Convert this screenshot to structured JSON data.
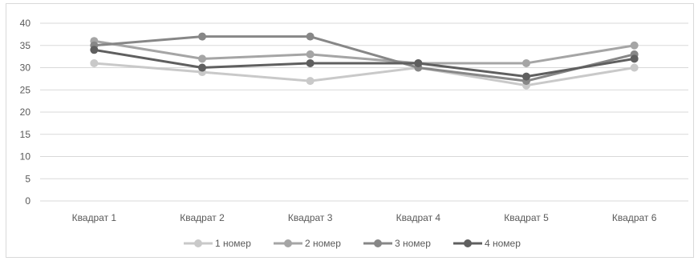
{
  "chart_data": {
    "type": "line",
    "categories": [
      "Квадрат 1",
      "Квадрат 2",
      "Квадрат 3",
      "Квадрат 4",
      "Квадрат 5",
      "Квадрат 6"
    ],
    "series": [
      {
        "name": "1 номер",
        "color": "#c9c9c9",
        "values": [
          31,
          29,
          27,
          30,
          26,
          30
        ]
      },
      {
        "name": "2 номер",
        "color": "#a5a5a5",
        "values": [
          36,
          32,
          33,
          31,
          31,
          35
        ]
      },
      {
        "name": "3 номер",
        "color": "#878787",
        "values": [
          35,
          37,
          37,
          30,
          27,
          33
        ]
      },
      {
        "name": "4 номер",
        "color": "#5f5f5f",
        "values": [
          34,
          30,
          31,
          31,
          28,
          32
        ]
      }
    ],
    "ylim": [
      0,
      40
    ],
    "yticks": [
      0,
      5,
      10,
      15,
      20,
      25,
      30,
      35,
      40
    ],
    "grid": true,
    "legend_position": "bottom",
    "title": "",
    "xlabel": "",
    "ylabel": ""
  }
}
